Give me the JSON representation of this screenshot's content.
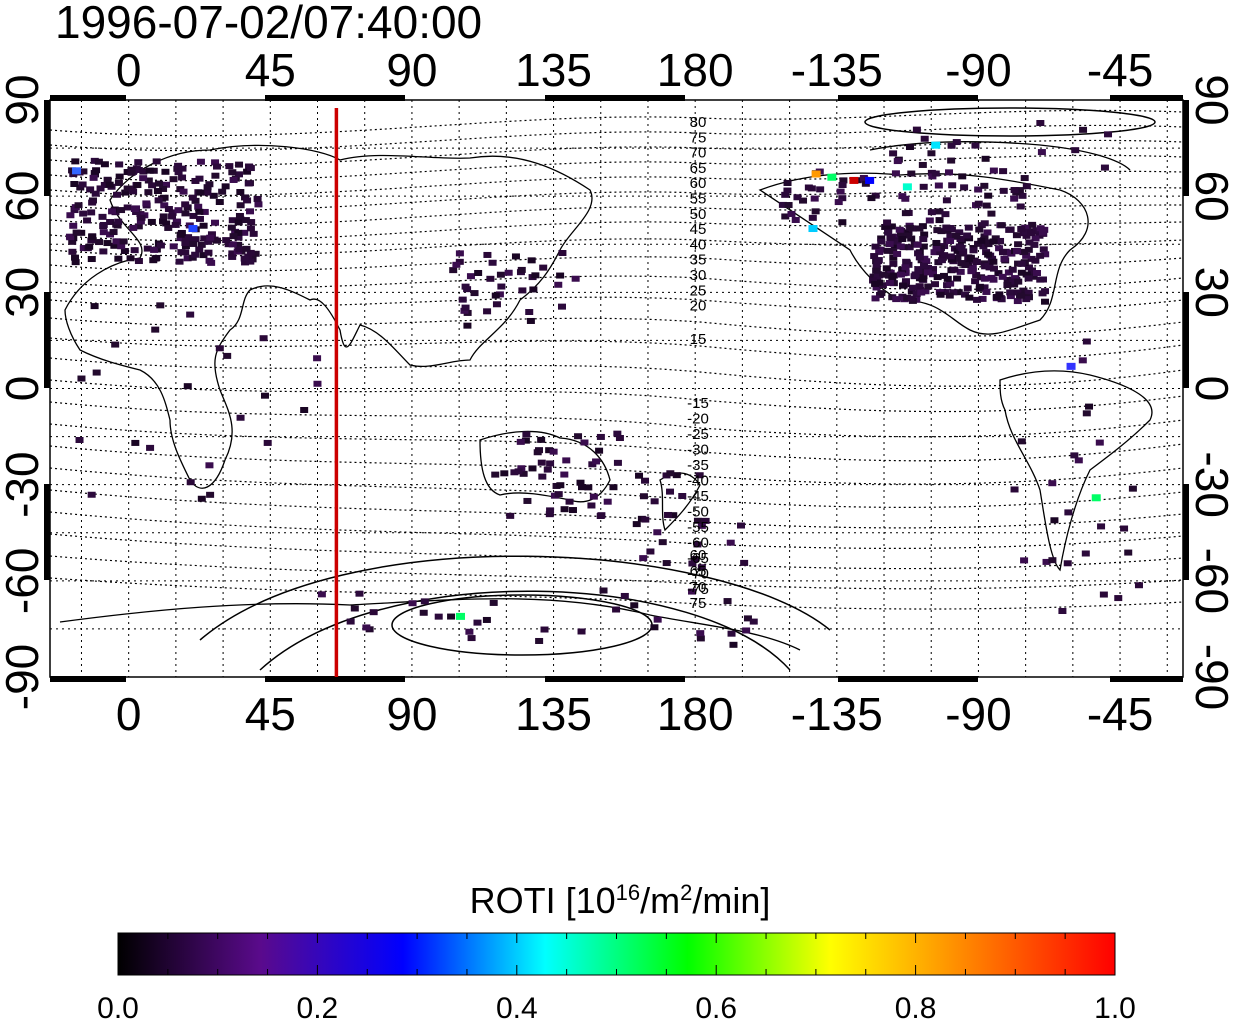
{
  "title": "1996-07-02/07:40:00",
  "map": {
    "lon_ticks_top": [
      "0",
      "45",
      "90",
      "135",
      "180",
      "-135",
      "-90",
      "-45"
    ],
    "lon_ticks_bottom": [
      "0",
      "45",
      "90",
      "135",
      "180",
      "-135",
      "-90",
      "-45"
    ],
    "lat_ticks_left": [
      "90",
      "60",
      "30",
      "0",
      "-30",
      "-60",
      "-90"
    ],
    "lat_ticks_right": [
      "90",
      "60",
      "30",
      "0",
      "-30",
      "-60",
      "-90"
    ],
    "marker_longitude_deg": 66,
    "marker_color": "#cc0000",
    "mlat_labels_north": [
      "80",
      "75",
      "70",
      "65",
      "60",
      "55",
      "50",
      "45",
      "40",
      "35",
      "30",
      "25",
      "20",
      "15"
    ],
    "mlat_labels_south": [
      "-15",
      "-20",
      "-25",
      "-30",
      "-35",
      "-40",
      "-45",
      "-50",
      "-55",
      "-60",
      "-65",
      "-70",
      "-75"
    ],
    "mlat_labels_south_extra": [
      "60",
      "65",
      "70",
      "75"
    ]
  },
  "colorbar": {
    "title_prefix": "ROTI  [10",
    "title_sup1": "16",
    "title_mid": "/m",
    "title_sup2": "2",
    "title_suffix": "/min]",
    "tick_labels": [
      "0.0",
      "0.2",
      "0.4",
      "0.6",
      "0.8",
      "1.0"
    ],
    "range": [
      0.0,
      1.0
    ],
    "colormap_stops": [
      "#000000",
      "#5a0a8c",
      "#0000ff",
      "#00ffff",
      "#00ff00",
      "#ffff00",
      "#ff8000",
      "#ff0000"
    ]
  }
}
